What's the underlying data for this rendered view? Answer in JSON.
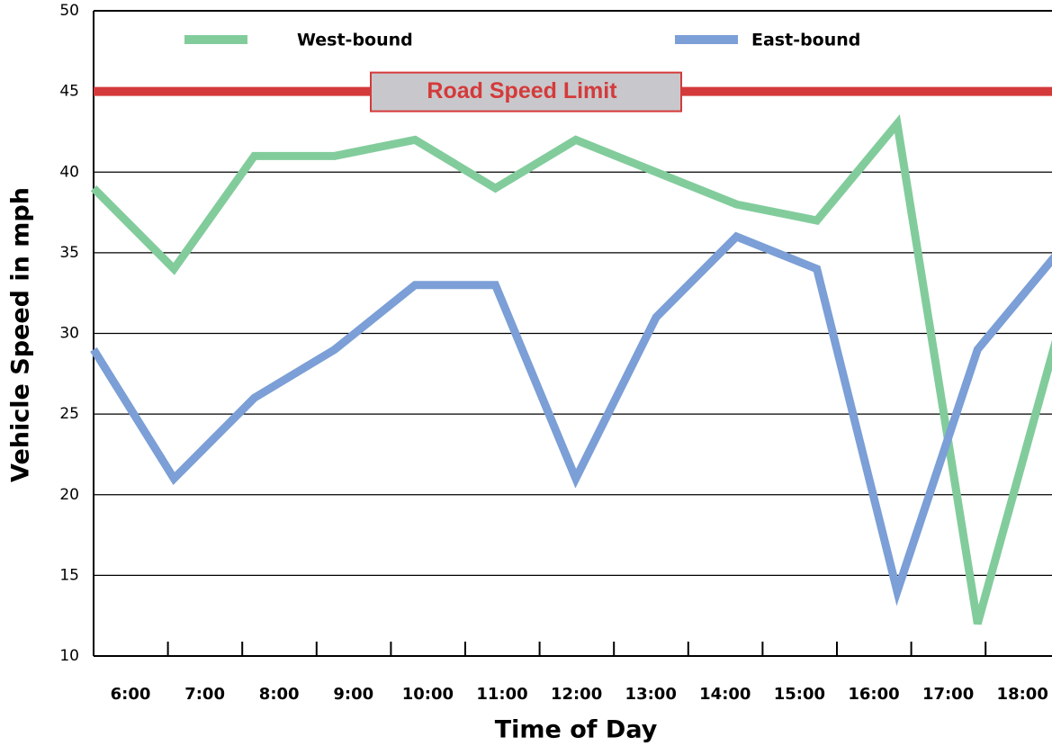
{
  "chart_data": {
    "type": "line",
    "x_label": "Time of Day",
    "y_label": "Vehicle Speed in mph",
    "categories": [
      "6:00",
      "7:00",
      "8:00",
      "9:00",
      "10:00",
      "11:00",
      "12:00",
      "13:00",
      "14:00",
      "15:00",
      "16:00",
      "17:00",
      "18:00"
    ],
    "series": [
      {
        "name": "West-bound",
        "color": "#82cc9c",
        "values": [
          39,
          34,
          41,
          41,
          42,
          39,
          42,
          40,
          38,
          37,
          43,
          12,
          30
        ]
      },
      {
        "name": "East-bound",
        "color": "#7b9fd6",
        "values": [
          29,
          21,
          26,
          29,
          33,
          33,
          21,
          31,
          36,
          34,
          14,
          29,
          35
        ]
      }
    ],
    "annotations": [
      {
        "label": "Road Speed Limit",
        "value": 45,
        "color": "#d43a3a"
      }
    ],
    "ylim": [
      10,
      50
    ],
    "yticks": [
      10,
      15,
      20,
      25,
      30,
      35,
      40,
      45,
      50
    ],
    "grid": true,
    "legend": "top"
  }
}
